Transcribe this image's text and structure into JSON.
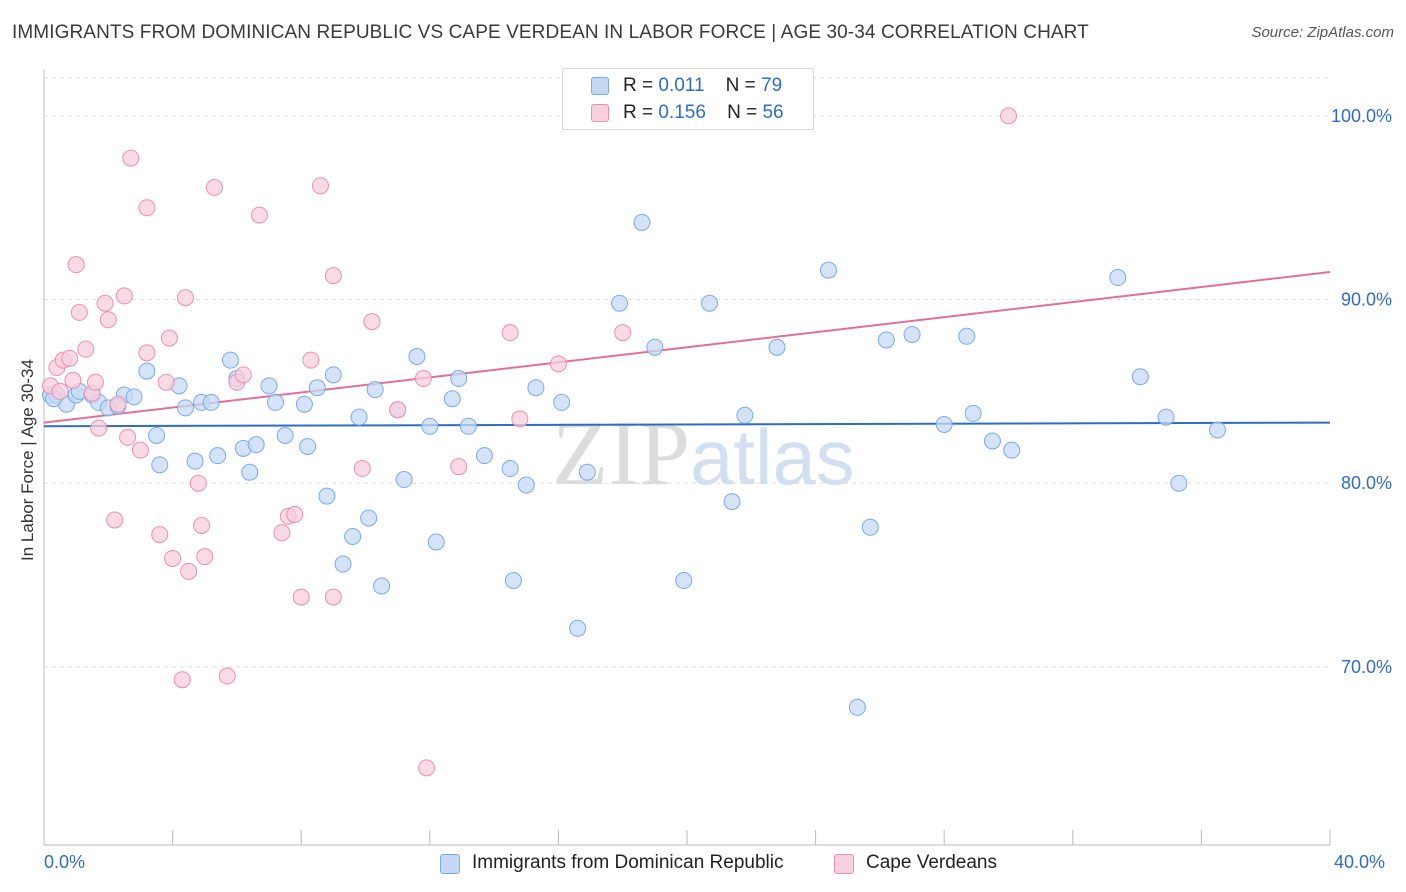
{
  "header": {
    "title": "IMMIGRANTS FROM DOMINICAN REPUBLIC VS CAPE VERDEAN IN LABOR FORCE | AGE 30-34 CORRELATION CHART",
    "source": "Source: ZipAtlas.com"
  },
  "legend_top": {
    "rows": [
      {
        "r_label": "R =",
        "r_value": "0.011",
        "n_label": "N =",
        "n_value": "79"
      },
      {
        "r_label": "R =",
        "r_value": "0.156",
        "n_label": "N =",
        "n_value": "56"
      }
    ]
  },
  "watermark": {
    "zip": "ZIP",
    "atlas": "atlas"
  },
  "chart_data": {
    "type": "scatter",
    "title": "IMMIGRANTS FROM DOMINICAN REPUBLIC VS CAPE VERDEAN IN LABOR FORCE | AGE 30-34 CORRELATION CHART",
    "xlabel": "",
    "ylabel": "In Labor Force | Age 30-34",
    "xlim": [
      0,
      40
    ],
    "ylim": [
      60.3,
      102.5
    ],
    "x_tick_labels": [
      "0.0%",
      "40.0%"
    ],
    "y_ticks": [
      70,
      80,
      90,
      100
    ],
    "y_tick_labels": [
      "70.0%",
      "80.0%",
      "90.0%",
      "100.0%"
    ],
    "grid": true,
    "legend_placement": "bottom-center",
    "series": [
      {
        "name": "Immigrants from Dominican Republic",
        "color": "#7aaae8",
        "fill": "#c5d9f5",
        "r": 0.011,
        "n": 79,
        "trend": [
          [
            0,
            83.1
          ],
          [
            40,
            83.3
          ]
        ],
        "points": [
          [
            0.2,
            84.8
          ],
          [
            0.4,
            84.8
          ],
          [
            0.7,
            84.3
          ],
          [
            1.0,
            84.8
          ],
          [
            1.1,
            85.0
          ],
          [
            1.5,
            84.8
          ],
          [
            1.7,
            84.4
          ],
          [
            2.0,
            84.1
          ],
          [
            2.5,
            84.8
          ],
          [
            2.8,
            84.7
          ],
          [
            3.2,
            86.1
          ],
          [
            3.6,
            81.0
          ],
          [
            3.5,
            82.6
          ],
          [
            4.2,
            85.3
          ],
          [
            4.4,
            84.1
          ],
          [
            4.7,
            81.2
          ],
          [
            4.9,
            84.4
          ],
          [
            5.2,
            84.4
          ],
          [
            5.4,
            81.5
          ],
          [
            5.8,
            86.7
          ],
          [
            6.0,
            85.7
          ],
          [
            6.2,
            81.9
          ],
          [
            6.4,
            80.6
          ],
          [
            6.6,
            82.1
          ],
          [
            7.0,
            85.3
          ],
          [
            7.2,
            84.4
          ],
          [
            7.5,
            82.6
          ],
          [
            8.1,
            84.3
          ],
          [
            8.2,
            82.0
          ],
          [
            8.5,
            85.2
          ],
          [
            8.8,
            79.3
          ],
          [
            9.0,
            85.9
          ],
          [
            9.3,
            75.6
          ],
          [
            9.6,
            77.1
          ],
          [
            9.8,
            83.6
          ],
          [
            10.1,
            78.1
          ],
          [
            10.3,
            85.1
          ],
          [
            10.5,
            74.4
          ],
          [
            11.0,
            84.0
          ],
          [
            11.2,
            80.2
          ],
          [
            11.6,
            86.9
          ],
          [
            12.2,
            76.8
          ],
          [
            12.0,
            83.1
          ],
          [
            12.7,
            84.6
          ],
          [
            12.9,
            85.7
          ],
          [
            13.2,
            83.1
          ],
          [
            13.7,
            81.5
          ],
          [
            14.5,
            80.8
          ],
          [
            14.6,
            74.7
          ],
          [
            15.0,
            79.9
          ],
          [
            15.3,
            85.2
          ],
          [
            16.1,
            84.4
          ],
          [
            16.6,
            72.1
          ],
          [
            16.9,
            80.6
          ],
          [
            17.9,
            89.8
          ],
          [
            18.6,
            94.2
          ],
          [
            19.0,
            87.4
          ],
          [
            19.9,
            74.7
          ],
          [
            20.7,
            89.8
          ],
          [
            21.4,
            79.0
          ],
          [
            21.8,
            83.7
          ],
          [
            22.8,
            87.4
          ],
          [
            24.4,
            91.6
          ],
          [
            25.3,
            67.8
          ],
          [
            25.7,
            77.6
          ],
          [
            26.2,
            87.8
          ],
          [
            27.0,
            88.1
          ],
          [
            28.0,
            83.2
          ],
          [
            28.7,
            88.0
          ],
          [
            28.9,
            83.8
          ],
          [
            29.5,
            82.3
          ],
          [
            30.1,
            81.8
          ],
          [
            33.4,
            91.2
          ],
          [
            34.1,
            85.8
          ],
          [
            34.9,
            83.6
          ],
          [
            35.3,
            80.0
          ],
          [
            36.5,
            82.9
          ],
          [
            0.3,
            84.6
          ],
          [
            2.3,
            84.2
          ]
        ]
      },
      {
        "name": "Cape Verdeans",
        "color": "#ea8fb0",
        "fill": "#f8cfdc",
        "r": 0.156,
        "n": 56,
        "trend": [
          [
            0,
            83.3
          ],
          [
            40,
            91.5
          ]
        ],
        "points": [
          [
            0.2,
            85.3
          ],
          [
            0.4,
            86.3
          ],
          [
            0.5,
            85.0
          ],
          [
            0.6,
            86.7
          ],
          [
            0.8,
            86.8
          ],
          [
            0.9,
            85.6
          ],
          [
            1.0,
            91.9
          ],
          [
            1.1,
            89.3
          ],
          [
            1.3,
            87.3
          ],
          [
            1.5,
            84.9
          ],
          [
            1.6,
            85.5
          ],
          [
            1.7,
            83.0
          ],
          [
            1.9,
            89.8
          ],
          [
            2.0,
            88.9
          ],
          [
            2.2,
            78.0
          ],
          [
            2.3,
            84.3
          ],
          [
            2.5,
            90.2
          ],
          [
            2.6,
            82.5
          ],
          [
            2.7,
            97.7
          ],
          [
            3.0,
            81.8
          ],
          [
            3.2,
            87.1
          ],
          [
            3.2,
            95.0
          ],
          [
            3.6,
            77.2
          ],
          [
            3.8,
            85.5
          ],
          [
            3.9,
            87.9
          ],
          [
            4.0,
            75.9
          ],
          [
            4.3,
            69.3
          ],
          [
            4.4,
            90.1
          ],
          [
            4.5,
            75.2
          ],
          [
            4.8,
            80.0
          ],
          [
            4.9,
            77.7
          ],
          [
            5.0,
            76.0
          ],
          [
            5.3,
            96.1
          ],
          [
            5.7,
            69.5
          ],
          [
            6.0,
            85.5
          ],
          [
            6.2,
            85.9
          ],
          [
            6.7,
            94.6
          ],
          [
            7.4,
            77.3
          ],
          [
            7.6,
            78.2
          ],
          [
            7.8,
            78.3
          ],
          [
            8.0,
            73.8
          ],
          [
            8.3,
            86.7
          ],
          [
            8.6,
            96.2
          ],
          [
            9.0,
            73.8
          ],
          [
            9.0,
            91.3
          ],
          [
            9.9,
            80.8
          ],
          [
            10.2,
            88.8
          ],
          [
            11.0,
            84.0
          ],
          [
            11.8,
            85.7
          ],
          [
            11.9,
            64.5
          ],
          [
            12.9,
            80.9
          ],
          [
            14.5,
            88.2
          ],
          [
            14.8,
            83.5
          ],
          [
            16.0,
            86.5
          ],
          [
            18.0,
            88.2
          ],
          [
            30.0,
            100.0
          ]
        ]
      }
    ]
  },
  "bottom_legend": {
    "items": [
      {
        "label": "Immigrants from Dominican Republic"
      },
      {
        "label": "Cape Verdeans"
      }
    ]
  }
}
